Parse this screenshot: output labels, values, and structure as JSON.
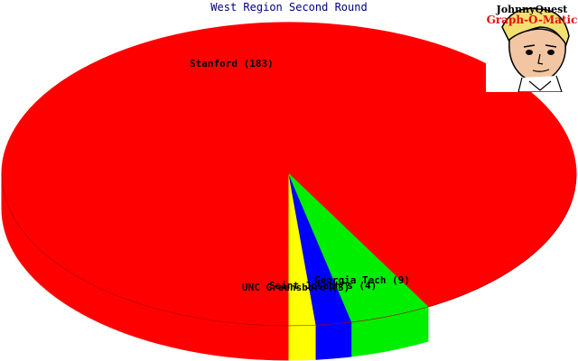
{
  "chart_data": {
    "type": "pie",
    "title": "West Region Second Round",
    "slices": [
      {
        "label": "Stanford (183)",
        "value": 183,
        "color": "#ff0000"
      },
      {
        "label": "Georgia Tech (9)",
        "value": 9,
        "color": "#00ee00"
      },
      {
        "label": "Saint Joseph's (4)",
        "value": 4,
        "color": "#0000ff"
      },
      {
        "label": "UNC Greensboro (3)",
        "value": 3,
        "color": "#ffff00"
      }
    ]
  },
  "logo": {
    "line1": "JohnnyQuest",
    "line2": "Graph-O-Matic"
  }
}
